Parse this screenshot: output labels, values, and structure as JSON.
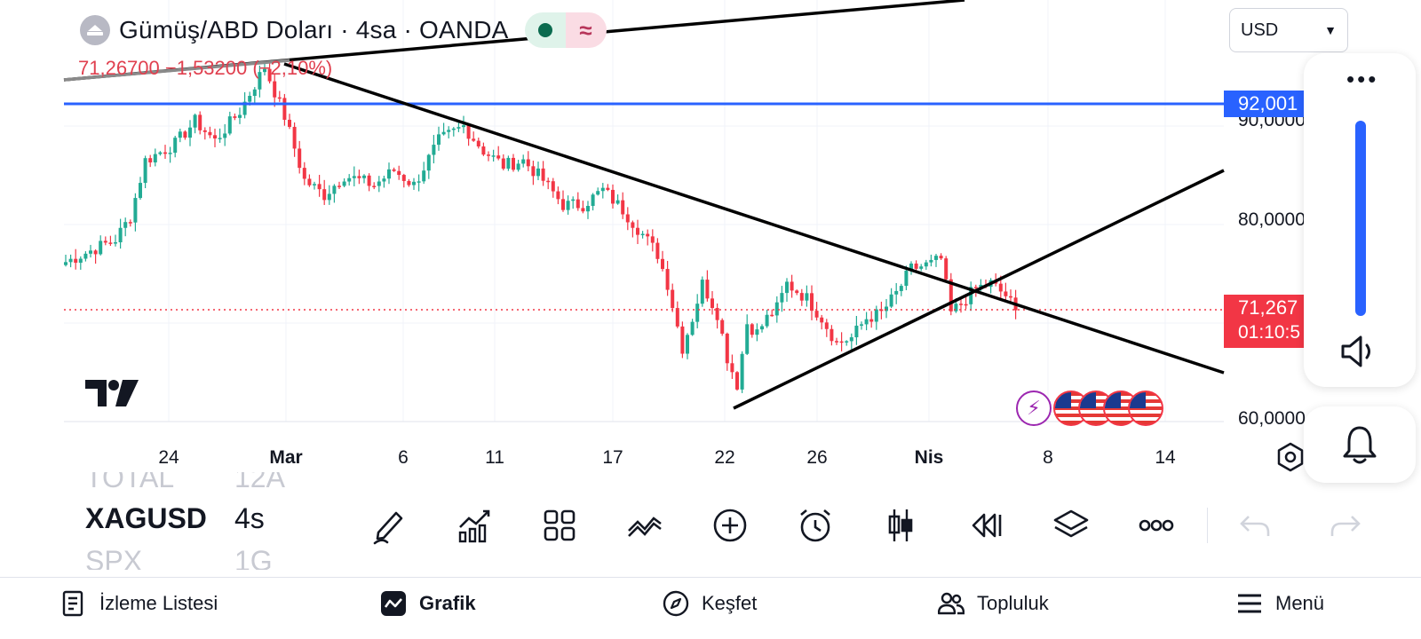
{
  "header": {
    "exchange_icon": "bank-icon",
    "title": "Gümüş/ABD Doları · 4sa · OANDA",
    "status_icons": [
      "market-open-dot-icon",
      "approx-data-icon"
    ],
    "price_change": "71,26700 −1,53200 (−2,10%)"
  },
  "currency_selector": {
    "value": "USD"
  },
  "side_panel": {
    "more_icon": "more-dots-icon",
    "sound_icon": "speaker-icon",
    "alert_icon": "bell-icon"
  },
  "price_axis": {
    "labels": [
      "90,0000",
      "80,0000",
      "60,0000"
    ],
    "horizontal_line_label": "92,001",
    "last_price_label": "71,267",
    "countdown_label": "01:10:5"
  },
  "time_axis": {
    "labels": [
      "24",
      "Mar",
      "6",
      "11",
      "17",
      "22",
      "26",
      "Nis",
      "8",
      "14"
    ]
  },
  "colors": {
    "up": "#22ab94",
    "down": "#f23645",
    "horizontal_line": "#2962ff",
    "trendline": "#000000",
    "text": "#131722"
  },
  "chart_data": {
    "type": "candlestick",
    "title": "Gümüş/ABD Doları · 4sa · OANDA",
    "last_price": 71.267,
    "price_change": -1.532,
    "price_change_pct": -2.1,
    "horizontal_line_price": 92.001,
    "ylim": [
      58,
      97
    ],
    "y_ticks": [
      60,
      80,
      90
    ],
    "x_ticks": [
      "24",
      "Mar",
      "6",
      "11",
      "17",
      "22",
      "26",
      "Nis",
      "8",
      "14"
    ],
    "waypoints": [
      [
        0,
        76.2
      ],
      [
        10,
        78.5
      ],
      [
        13,
        80.8
      ],
      [
        16,
        86.5
      ],
      [
        22,
        88.2
      ],
      [
        26,
        90.5
      ],
      [
        30,
        88.5
      ],
      [
        35,
        91.5
      ],
      [
        40,
        96.0
      ],
      [
        44,
        91.0
      ],
      [
        48,
        84.5
      ],
      [
        52,
        83.0
      ],
      [
        56,
        85.0
      ],
      [
        62,
        84.0
      ],
      [
        66,
        85.5
      ],
      [
        70,
        84.0
      ],
      [
        75,
        88.5
      ],
      [
        80,
        90.0
      ],
      [
        84,
        87.5
      ],
      [
        88,
        86.0
      ],
      [
        92,
        86.5
      ],
      [
        96,
        84.5
      ],
      [
        100,
        82.0
      ],
      [
        104,
        82.0
      ],
      [
        108,
        83.5
      ],
      [
        112,
        81.5
      ],
      [
        116,
        79.0
      ],
      [
        119,
        77.0
      ],
      [
        121,
        74.0
      ],
      [
        124,
        67.5
      ],
      [
        126,
        70.5
      ],
      [
        128,
        74.0
      ],
      [
        131,
        71.0
      ],
      [
        133,
        66.5
      ],
      [
        135,
        63.8
      ],
      [
        137,
        70.0
      ],
      [
        139,
        69.0
      ],
      [
        141,
        70.5
      ],
      [
        143,
        71.5
      ],
      [
        145,
        74.0
      ],
      [
        149,
        72.5
      ],
      [
        152,
        70.5
      ],
      [
        155,
        68.0
      ],
      [
        158,
        68.5
      ],
      [
        161,
        70.5
      ],
      [
        164,
        71.0
      ],
      [
        167,
        73.0
      ],
      [
        170,
        75.5
      ],
      [
        174,
        76.0
      ],
      [
        176,
        76.5
      ],
      [
        178,
        71.0
      ],
      [
        180,
        72.0
      ],
      [
        183,
        73.5
      ],
      [
        186,
        74.0
      ],
      [
        189,
        72.8
      ],
      [
        191,
        71.3
      ]
    ],
    "trendlines": [
      {
        "name": "falling resistance",
        "points": [
          [
            "Mar",
            96.0
          ],
          [
            "Nis+10d",
            64.5
          ]
        ]
      },
      {
        "name": "rising support",
        "points": [
          [
            "22",
            63.0
          ],
          [
            "Nis+10d",
            86.0
          ]
        ]
      },
      {
        "name": "long rising line",
        "points": [
          [
            "start",
            95.5
          ],
          [
            "Mar+20d",
            101.0
          ]
        ]
      }
    ]
  },
  "watchlist": {
    "rows": [
      {
        "symbol": "TOTAL",
        "resolution": "12A"
      },
      {
        "symbol": "XAGUSD",
        "resolution": "4s"
      },
      {
        "symbol": "SPX",
        "resolution": "1G"
      }
    ]
  },
  "toolbar": {
    "tools": [
      "drawing-pen-icon",
      "indicators-icon",
      "layout-grid-icon",
      "patterns-icon",
      "add-circle-icon",
      "alert-clock-icon",
      "candle-type-icon",
      "replay-icon",
      "layers-icon",
      "more-circles-icon",
      "undo-icon",
      "redo-icon"
    ]
  },
  "bottom_nav": {
    "items": [
      {
        "label": "İzleme Listesi",
        "icon": "watchlist-icon"
      },
      {
        "label": "Grafik",
        "icon": "chart-icon"
      },
      {
        "label": "Keşfet",
        "icon": "compass-icon"
      },
      {
        "label": "Topluluk",
        "icon": "community-icon"
      },
      {
        "label": "Menü",
        "icon": "hamburger-icon"
      }
    ]
  }
}
